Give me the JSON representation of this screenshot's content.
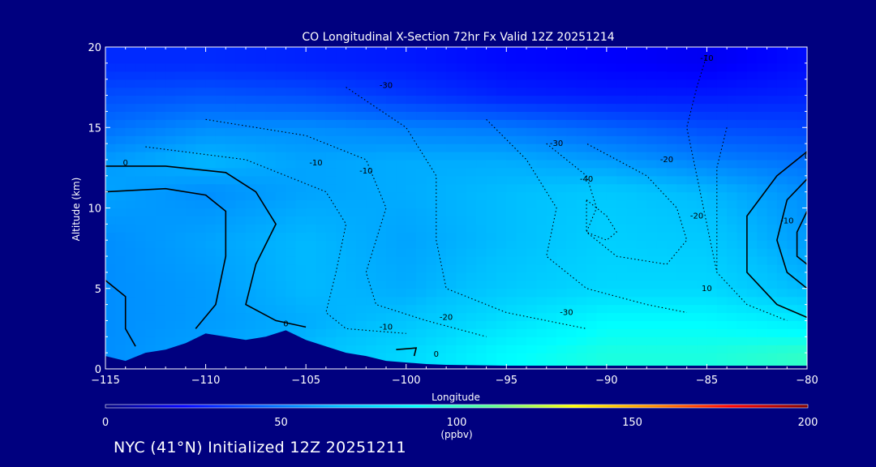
{
  "chart_data": {
    "type": "heatmap",
    "title": "CO Longitudinal X-Section 72hr  Fx Valid 12Z 20251214",
    "xlabel": "Longitude",
    "ylabel": "Altitude (km)",
    "xlim": [
      -115,
      -80
    ],
    "ylim": [
      0,
      20
    ],
    "x_ticks": [
      -115,
      -110,
      -105,
      -100,
      -95,
      -90,
      -85,
      -80
    ],
    "x_tick_labels": [
      "−115",
      "−110",
      "−105",
      "−100",
      "−95",
      "−90",
      "−85",
      "−80"
    ],
    "y_ticks": [
      0,
      5,
      10,
      15,
      20
    ],
    "y_tick_labels": [
      "0",
      "5",
      "10",
      "15",
      "20"
    ],
    "colorbar": {
      "label": "(ppbv)",
      "min": 0,
      "max": 200,
      "ticks": [
        "0",
        "50",
        "100",
        "150",
        "200"
      ],
      "colors": [
        "#00007f",
        "#0000ff",
        "#0060ff",
        "#00c0ff",
        "#00ffff",
        "#60ff90",
        "#ffff00",
        "#ff9000",
        "#ff0000",
        "#7f0000"
      ]
    },
    "field_ppbv": {
      "lon": [
        -115,
        -110,
        -105,
        -100,
        -95,
        -90,
        -85,
        -80
      ],
      "alt": [
        1,
        3,
        5,
        8,
        11,
        13,
        15,
        17,
        19
      ],
      "values": [
        [
          55,
          60,
          66,
          75,
          88,
          95,
          95,
          100
        ],
        [
          55,
          58,
          62,
          68,
          78,
          88,
          88,
          82
        ],
        [
          55,
          58,
          65,
          62,
          70,
          75,
          75,
          65
        ],
        [
          55,
          60,
          65,
          60,
          66,
          72,
          70,
          58
        ],
        [
          60,
          55,
          60,
          62,
          66,
          70,
          65,
          55
        ],
        [
          58,
          65,
          60,
          62,
          62,
          58,
          52,
          48
        ],
        [
          48,
          55,
          55,
          52,
          50,
          45,
          40,
          38
        ],
        [
          40,
          42,
          40,
          35,
          30,
          28,
          28,
          30
        ],
        [
          32,
          32,
          30,
          28,
          24,
          22,
          20,
          25
        ]
      ]
    },
    "contour_labels": [
      "-30",
      "-30",
      "-40",
      "-10",
      "-20",
      "-10",
      "0",
      "0",
      "0",
      "-10",
      "-20",
      "-30",
      "-10",
      "-20",
      "10",
      "0",
      "-10"
    ],
    "terrain_km": [
      [
        -115,
        0.8
      ],
      [
        -114,
        0.5
      ],
      [
        -113,
        1.0
      ],
      [
        -112,
        1.2
      ],
      [
        -111,
        1.6
      ],
      [
        -110,
        2.2
      ],
      [
        -109,
        2.0
      ],
      [
        -108,
        1.8
      ],
      [
        -107,
        2.0
      ],
      [
        -106,
        2.4
      ],
      [
        -105,
        1.8
      ],
      [
        -104,
        1.4
      ],
      [
        -103,
        1.0
      ],
      [
        -102,
        0.8
      ],
      [
        -101,
        0.5
      ],
      [
        -100,
        0.4
      ],
      [
        -99,
        0.3
      ],
      [
        -98,
        0.25
      ],
      [
        -95,
        0.2
      ],
      [
        -90,
        0.2
      ],
      [
        -85,
        0.2
      ],
      [
        -80,
        0.2
      ]
    ]
  },
  "footer": "NYC (41°N) Initialized 12Z 20251211"
}
